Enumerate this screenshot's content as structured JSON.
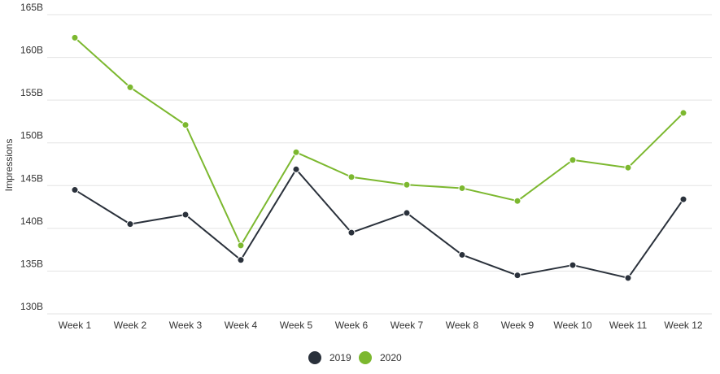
{
  "chart_data": {
    "type": "line",
    "title": "",
    "xlabel": "",
    "ylabel": "Impressions",
    "categories": [
      "Week 1",
      "Week 2",
      "Week 3",
      "Week 4",
      "Week 5",
      "Week 6",
      "Week 7",
      "Week 8",
      "Week 9",
      "Week 10",
      "Week 11",
      "Week 12"
    ],
    "y_ticks": [
      "130B",
      "135B",
      "140B",
      "145B",
      "150B",
      "155B",
      "160B",
      "165B"
    ],
    "ylim": [
      130,
      165
    ],
    "y_unit": "B",
    "grid": true,
    "legend_position": "bottom-center",
    "series": [
      {
        "name": "2019",
        "color": "#2a313b",
        "values": [
          144.5,
          140.5,
          141.6,
          136.3,
          146.9,
          139.5,
          141.8,
          136.9,
          134.5,
          135.7,
          134.2,
          143.4
        ]
      },
      {
        "name": "2020",
        "color": "#7cb82f",
        "values": [
          162.3,
          156.5,
          152.1,
          138.0,
          148.9,
          146.0,
          145.1,
          144.7,
          143.2,
          148.0,
          147.1,
          153.5
        ]
      }
    ]
  }
}
